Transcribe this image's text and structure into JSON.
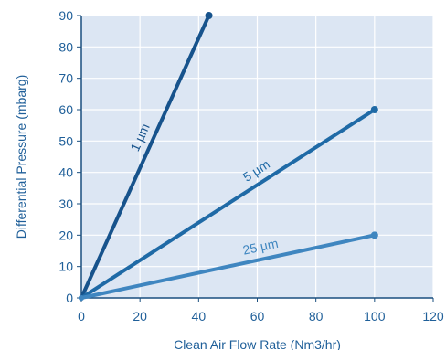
{
  "chart_data": {
    "type": "line",
    "title": "",
    "xlabel": "Clean Air Flow Rate (Nm3/hr)",
    "ylabel": "Differential Pressure (mbarg)",
    "xlim": [
      0,
      120
    ],
    "ylim": [
      0,
      90
    ],
    "xticks": [
      "0",
      "20",
      "40",
      "60",
      "80",
      "100",
      "120"
    ],
    "yticks": [
      "0",
      "10",
      "20",
      "30",
      "40",
      "50",
      "60",
      "70",
      "80",
      "90"
    ],
    "grid": true,
    "legend": "none",
    "series": [
      {
        "name": "1 µm",
        "x": [
          0,
          43.5
        ],
        "y": [
          0,
          90
        ],
        "color": "#17538c"
      },
      {
        "name": "5 µm",
        "x": [
          0,
          100
        ],
        "y": [
          0,
          60
        ],
        "color": "#1f6aa6"
      },
      {
        "name": "25 µm",
        "x": [
          0,
          100
        ],
        "y": [
          0,
          20
        ],
        "color": "#3f86c0"
      }
    ],
    "colors": {
      "plot_background": "#dce6f3",
      "grid": "#ffffff",
      "axis": "#1a4f7f",
      "text": "#1f5f99"
    }
  }
}
